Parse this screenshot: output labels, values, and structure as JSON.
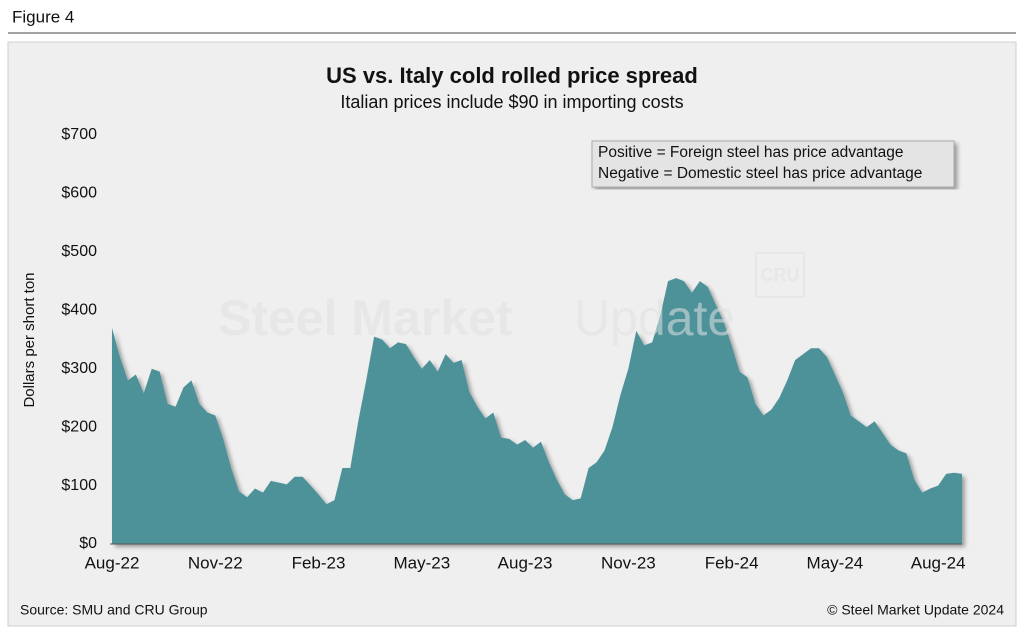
{
  "figure_label": "Figure 4",
  "source": "Source: SMU and CRU Group",
  "copyright": "© Steel Market Update 2024",
  "watermark": {
    "main": "Steel Market",
    "light": "Update",
    "logo": "CRU"
  },
  "chart_data": {
    "type": "area",
    "title": "US vs. Italy cold rolled price spread",
    "subtitle": "Italian prices include $90 in importing costs",
    "y_label": "Dollars per short ton",
    "annotations": [
      "Positive = Foreign steel has price advantage",
      "Negative = Domestic steel has price advantage"
    ],
    "color": "#4e9299",
    "categories": [
      "Aug-22",
      null,
      null,
      null,
      null,
      null,
      null,
      null,
      null,
      null,
      null,
      null,
      null,
      "Nov-22",
      null,
      null,
      null,
      null,
      null,
      null,
      null,
      null,
      null,
      null,
      null,
      null,
      "Feb-23",
      null,
      null,
      null,
      null,
      null,
      null,
      null,
      null,
      null,
      null,
      null,
      null,
      "May-23",
      null,
      null,
      null,
      null,
      null,
      null,
      null,
      null,
      null,
      null,
      null,
      null,
      "Aug-23",
      null,
      null,
      null,
      null,
      null,
      null,
      null,
      null,
      null,
      null,
      null,
      null,
      "Nov-23",
      null,
      null,
      null,
      null,
      null,
      null,
      null,
      null,
      null,
      null,
      null,
      null,
      "Feb-24",
      null,
      null,
      null,
      null,
      null,
      null,
      null,
      null,
      null,
      null,
      null,
      null,
      "May-24",
      null,
      null,
      null,
      null,
      null,
      null,
      null,
      null,
      null,
      null,
      null,
      null,
      "Aug-24",
      null,
      null,
      null
    ],
    "values": [
      370,
      320,
      280,
      290,
      258,
      300,
      295,
      240,
      235,
      268,
      280,
      240,
      225,
      220,
      180,
      130,
      90,
      80,
      95,
      88,
      108,
      105,
      102,
      115,
      115,
      100,
      85,
      68,
      75,
      130,
      130,
      210,
      280,
      355,
      350,
      335,
      345,
      342,
      320,
      300,
      315,
      295,
      325,
      310,
      315,
      260,
      235,
      215,
      225,
      182,
      180,
      170,
      178,
      165,
      175,
      140,
      110,
      85,
      75,
      78,
      130,
      140,
      160,
      200,
      255,
      300,
      365,
      340,
      345,
      390,
      450,
      455,
      450,
      430,
      450,
      440,
      410,
      380,
      340,
      295,
      285,
      240,
      220,
      230,
      250,
      280,
      315,
      325,
      335,
      335,
      320,
      290,
      260,
      220,
      210,
      200,
      210,
      190,
      170,
      160,
      155,
      110,
      88,
      95,
      100,
      120,
      122,
      120
    ],
    "ylim": [
      0,
      700
    ],
    "yticks": [
      {
        "value": 0,
        "label": "$0"
      },
      {
        "value": 100,
        "label": "$100"
      },
      {
        "value": 200,
        "label": "$200"
      },
      {
        "value": 300,
        "label": "$300"
      },
      {
        "value": 400,
        "label": "$400"
      },
      {
        "value": 500,
        "label": "$500"
      },
      {
        "value": 600,
        "label": "$600"
      },
      {
        "value": 700,
        "label": "$700"
      }
    ],
    "grid": false
  }
}
